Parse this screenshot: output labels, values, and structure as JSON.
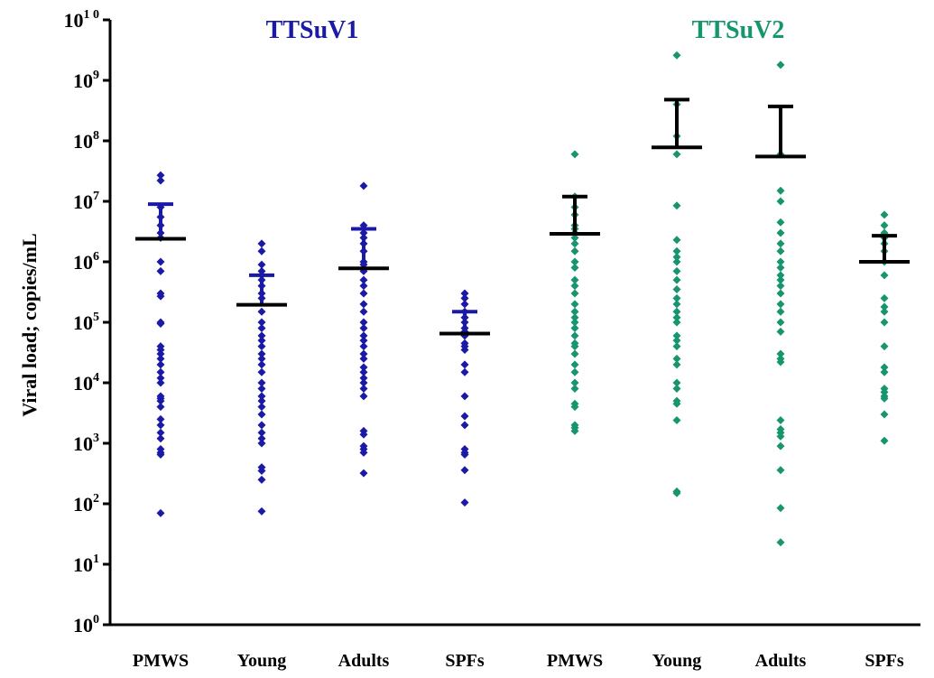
{
  "chart_data": {
    "type": "scatter",
    "ylabel": "Viral load; copies/mL",
    "yscale": "log10",
    "ylim": [
      1,
      10000000000
    ],
    "y_tick_labels": [
      {
        "base": "10",
        "exp": "0"
      },
      {
        "base": "10",
        "exp": "1"
      },
      {
        "base": "10",
        "exp": "2"
      },
      {
        "base": "10",
        "exp": "3"
      },
      {
        "base": "10",
        "exp": "4"
      },
      {
        "base": "10",
        "exp": "5"
      },
      {
        "base": "10",
        "exp": "6"
      },
      {
        "base": "10",
        "exp": "7"
      },
      {
        "base": "10",
        "exp": "8"
      },
      {
        "base": "10",
        "exp": "9"
      },
      {
        "base": "10",
        "exp": "1 0"
      }
    ],
    "groups": [
      {
        "title": "TTSuV1",
        "color": "#1a1aa6"
      },
      {
        "title": "TTSuV2",
        "color": "#16956e"
      }
    ],
    "categories": [
      "PMWS",
      "Young",
      "Adults",
      "SPFs",
      "PMWS",
      "Young",
      "Adults",
      "SPFs"
    ],
    "series": [
      {
        "group": 0,
        "category": "PMWS",
        "mean": 2400000,
        "upper": 9000000,
        "points": [
          27000000,
          22000000,
          8000000,
          5500000,
          4000000,
          3000000,
          2500000,
          1000000,
          700000,
          300000,
          270000,
          100000,
          95000,
          40000,
          35000,
          30000,
          25000,
          20000,
          15000,
          12000,
          10000,
          6000,
          5500,
          5000,
          4000,
          2500,
          2000,
          1500,
          1200,
          800,
          700,
          650,
          70
        ]
      },
      {
        "group": 0,
        "category": "Young",
        "mean": 195000,
        "upper": 600000,
        "points": [
          2000000,
          1500000,
          900000,
          700000,
          600000,
          500000,
          400000,
          300000,
          250000,
          150000,
          100000,
          80000,
          60000,
          50000,
          40000,
          30000,
          25000,
          20000,
          15000,
          10000,
          8000,
          6000,
          5000,
          4000,
          3000,
          2000,
          1500,
          1200,
          1000,
          400,
          350,
          250,
          75
        ]
      },
      {
        "group": 0,
        "category": "Adults",
        "mean": 780000,
        "upper": 3500000,
        "points": [
          18000000,
          4000000,
          3000000,
          2500000,
          2000000,
          1500000,
          1000000,
          900000,
          700000,
          500000,
          400000,
          300000,
          200000,
          150000,
          100000,
          80000,
          60000,
          50000,
          40000,
          30000,
          25000,
          18000,
          15000,
          12000,
          10000,
          8000,
          6000,
          1600,
          1400,
          900,
          800,
          700,
          320
        ]
      },
      {
        "group": 0,
        "category": "SPFs",
        "mean": 65000,
        "upper": 150000,
        "points": [
          300000,
          250000,
          200000,
          150000,
          120000,
          100000,
          80000,
          70000,
          60000,
          45000,
          40000,
          35000,
          20000,
          15000,
          6000,
          2800,
          2000,
          800,
          700,
          650,
          360,
          105
        ]
      },
      {
        "group": 1,
        "category": "PMWS",
        "mean": 2900000,
        "upper": 12000000,
        "points": [
          60000000,
          12000000,
          8000000,
          6000000,
          4000000,
          3500000,
          3000000,
          2500000,
          2000000,
          1500000,
          1000000,
          800000,
          500000,
          400000,
          300000,
          200000,
          150000,
          120000,
          100000,
          80000,
          60000,
          45000,
          40000,
          30000,
          20000,
          15000,
          10000,
          8000,
          4500,
          4000,
          2000,
          1800,
          1600
        ]
      },
      {
        "group": 1,
        "category": "Young",
        "mean": 78000000,
        "upper": 480000000,
        "points": [
          2600000000,
          400000000,
          120000000,
          60000000,
          8500000,
          2300000,
          1500000,
          1200000,
          1000000,
          700000,
          500000,
          350000,
          250000,
          200000,
          150000,
          120000,
          100000,
          60000,
          50000,
          40000,
          25000,
          20000,
          10000,
          8000,
          5000,
          4500,
          2400,
          160,
          150
        ]
      },
      {
        "group": 1,
        "category": "Adults",
        "mean": 55000000,
        "upper": 370000000,
        "points": [
          1800000000,
          60000000,
          15000000,
          10000000,
          4500000,
          3000000,
          2000000,
          1500000,
          1000000,
          800000,
          600000,
          500000,
          400000,
          300000,
          200000,
          150000,
          100000,
          70000,
          30000,
          25000,
          22000,
          2400,
          1700,
          1500,
          1300,
          900,
          360,
          85,
          23
        ]
      },
      {
        "group": 1,
        "category": "SPFs",
        "mean": 1000000,
        "upper": 2700000,
        "points": [
          6000000,
          4000000,
          3000000,
          2500000,
          2000000,
          1500000,
          1000000,
          600000,
          250000,
          180000,
          150000,
          100000,
          40000,
          18000,
          15000,
          8000,
          7000,
          6000,
          5500,
          3000,
          1100
        ]
      }
    ]
  }
}
